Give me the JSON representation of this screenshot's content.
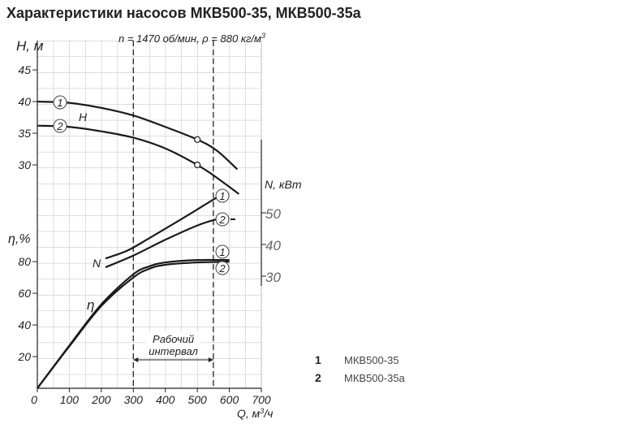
{
  "chart_data": {
    "type": "line",
    "title": "Характеристики насосов МКВ500-35, МКВ500-35а",
    "subtitle": {
      "text": "n = 1470 об/мин, ρ = 880 кг/м",
      "sup": "3"
    },
    "x_label": {
      "text": "Q, м",
      "sup": "3",
      "after": "/ч"
    },
    "h_label": "H, м",
    "eta_label": "η,%",
    "n_label": "N, кВт",
    "xlim": [
      0,
      700
    ],
    "xticks": [
      0,
      100,
      200,
      300,
      400,
      500,
      600,
      700
    ],
    "hlim": [
      25,
      49.5
    ],
    "hticks": [
      30,
      35,
      40,
      45
    ],
    "etalim": [
      0,
      90
    ],
    "etaticks": [
      20,
      40,
      60,
      80
    ],
    "nlim": [
      27,
      73
    ],
    "nticks": [
      30,
      40,
      50
    ],
    "curve_labels": {
      "h": "H",
      "n": "N",
      "eta": "η"
    },
    "series": [
      {
        "name": "1",
        "axis": "h",
        "x": [
          0,
          100,
          200,
          300,
          400,
          500,
          560,
          625
        ],
        "values": [
          40,
          39.8,
          39,
          37.8,
          36,
          34,
          32.3,
          29.3
        ],
        "markers": [
          {
            "x": 500,
            "y": 34
          }
        ]
      },
      {
        "name": "2",
        "axis": "h",
        "x": [
          0,
          100,
          200,
          300,
          400,
          500,
          560,
          630
        ],
        "values": [
          36.2,
          36,
          35.3,
          34.3,
          32.6,
          30,
          28,
          25.4
        ],
        "markers": [
          {
            "x": 500,
            "y": 30
          }
        ]
      },
      {
        "name": "1",
        "axis": "n",
        "x": [
          213,
          280,
          350,
          450,
          560
        ],
        "values": [
          35.6,
          38,
          42,
          48,
          54.8
        ]
      },
      {
        "name": "2",
        "axis": "n",
        "x": [
          213,
          300,
          400,
          500,
          560
        ],
        "values": [
          32.8,
          36.5,
          41.5,
          46,
          48
        ]
      },
      {
        "name": "1",
        "axis": "eta",
        "x": [
          0,
          100,
          200,
          300,
          350,
          400,
          500,
          600
        ],
        "values": [
          0,
          27,
          53,
          72,
          77,
          79.5,
          81,
          81
        ]
      },
      {
        "name": "2",
        "axis": "eta",
        "x": [
          0,
          100,
          200,
          300,
          350,
          400,
          500,
          600
        ],
        "values": [
          0,
          26.5,
          52,
          70,
          75.5,
          78,
          79.5,
          80
        ]
      }
    ],
    "interval": {
      "x": [
        300,
        550
      ],
      "label": [
        "Рабочий",
        "интервал"
      ]
    },
    "legend": [
      {
        "key": "1",
        "name": "МКВ500-35"
      },
      {
        "key": "2",
        "name": "МКВ500-35а"
      }
    ]
  }
}
